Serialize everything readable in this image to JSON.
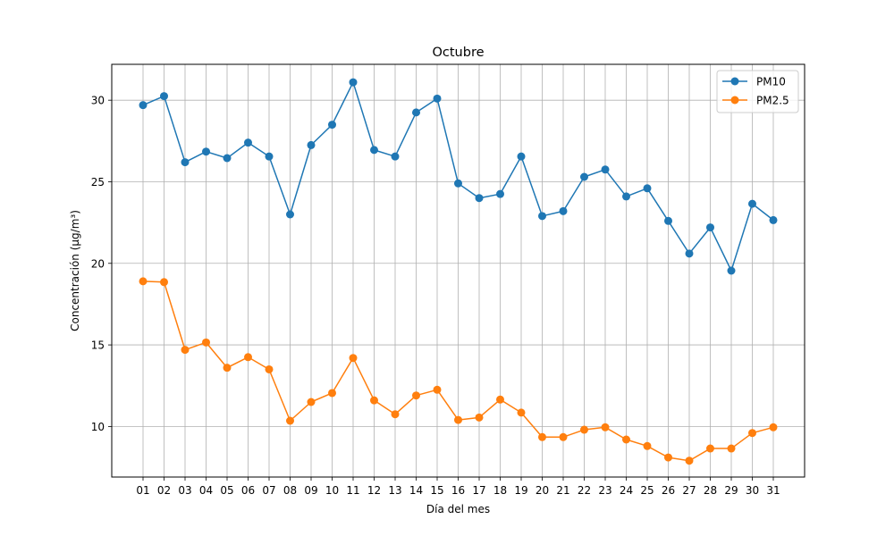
{
  "chart_data": {
    "type": "line",
    "title": "Octubre",
    "xlabel": "Día del mes",
    "ylabel": "Concentración (µg/m³)",
    "categories": [
      "01",
      "02",
      "03",
      "04",
      "05",
      "06",
      "07",
      "08",
      "09",
      "10",
      "11",
      "12",
      "13",
      "14",
      "15",
      "16",
      "17",
      "18",
      "19",
      "20",
      "21",
      "22",
      "23",
      "24",
      "25",
      "26",
      "27",
      "28",
      "29",
      "30",
      "31"
    ],
    "ylim": [
      6.9,
      32.2
    ],
    "yticks": [
      10,
      15,
      20,
      25,
      30
    ],
    "grid": true,
    "legend_position": "top-right",
    "series": [
      {
        "name": "PM10",
        "color": "#1f77b4",
        "marker": "circle",
        "values": [
          29.7,
          30.25,
          26.2,
          26.85,
          26.45,
          27.4,
          26.55,
          23.0,
          27.25,
          28.5,
          31.1,
          26.95,
          26.55,
          29.25,
          30.1,
          24.9,
          24.0,
          24.25,
          26.55,
          22.9,
          23.2,
          25.3,
          25.75,
          24.1,
          24.6,
          22.6,
          20.6,
          22.2,
          19.55,
          23.65,
          22.65
        ]
      },
      {
        "name": "PM2.5",
        "color": "#ff7f0e",
        "marker": "circle",
        "values": [
          18.9,
          18.85,
          14.7,
          15.15,
          13.6,
          14.25,
          13.5,
          10.35,
          11.5,
          12.05,
          14.2,
          11.6,
          10.75,
          11.9,
          12.25,
          10.4,
          10.55,
          11.65,
          10.85,
          9.35,
          9.35,
          9.8,
          9.95,
          9.2,
          8.8,
          8.1,
          7.9,
          8.65,
          8.65,
          9.6,
          9.95
        ]
      }
    ]
  }
}
